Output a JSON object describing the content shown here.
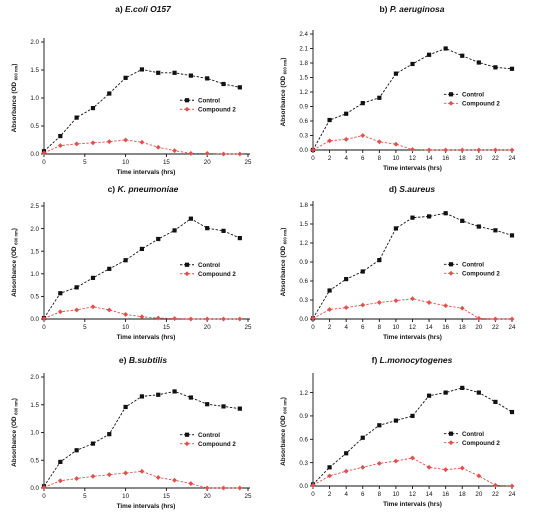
{
  "chart_data": [
    {
      "type": "line",
      "title_prefix": "a)",
      "title_name": "E.coli O157",
      "xlabel": "Time intervals (hrs)",
      "ylabel_main": "Absorbance  (OD",
      "ylabel_sub": "600 nm",
      "ylabel_end": ")",
      "xlim": [
        0,
        25
      ],
      "ylim": [
        0,
        2.0
      ],
      "xticks": [
        0,
        5,
        10,
        15,
        20,
        25
      ],
      "xtick_labels": [
        "0",
        "5",
        "10",
        "15",
        "20",
        "25"
      ],
      "yticks": [
        0,
        0.5,
        1.0,
        1.5,
        2.0
      ],
      "ytick_labels": [
        "0.0",
        "0.5",
        "1.0",
        "1.5",
        "2.0"
      ],
      "legend_position": "right",
      "series": [
        {
          "name": "Control",
          "color": "#111111",
          "marker": "square",
          "x": [
            0,
            2,
            4,
            6,
            8,
            10,
            12,
            14,
            16,
            18,
            20,
            22,
            24
          ],
          "y": [
            0.05,
            0.32,
            0.65,
            0.82,
            1.08,
            1.36,
            1.51,
            1.45,
            1.45,
            1.4,
            1.35,
            1.25,
            1.19
          ]
        },
        {
          "name": "Compound 2",
          "color": "#e0504c",
          "marker": "diamond",
          "x": [
            0,
            2,
            4,
            6,
            8,
            10,
            12,
            14,
            16,
            18,
            20,
            22,
            24
          ],
          "y": [
            0.02,
            0.15,
            0.18,
            0.2,
            0.22,
            0.25,
            0.21,
            0.12,
            0.06,
            0.01,
            0.01,
            0.0,
            0.0
          ]
        }
      ]
    },
    {
      "type": "line",
      "title_prefix": "b)",
      "title_name": "P. aeruginosa",
      "xlabel": "Time intervals (hrs)",
      "ylabel_main": "Absorbance  (OD",
      "ylabel_sub": "600 nm",
      "ylabel_end": ")",
      "xlim": [
        0,
        24
      ],
      "ylim": [
        0,
        2.4
      ],
      "xticks": [
        0,
        2,
        4,
        6,
        8,
        10,
        12,
        14,
        16,
        18,
        20,
        22,
        24
      ],
      "xtick_labels": [
        "0",
        "2",
        "4",
        "6",
        "8",
        "10",
        "12",
        "14",
        "16",
        "18",
        "20",
        "22",
        "24"
      ],
      "yticks": [
        0,
        0.3,
        0.6,
        0.9,
        1.2,
        1.5,
        1.8,
        2.1,
        2.4
      ],
      "ytick_labels": [
        "0.0",
        "0.3",
        "0.6",
        "0.9",
        "1.2",
        "1.5",
        "1.8",
        "2.1",
        "2.4"
      ],
      "legend_position": "right",
      "series": [
        {
          "name": "Control",
          "color": "#111111",
          "marker": "square",
          "x": [
            0,
            2,
            4,
            6,
            8,
            10,
            12,
            14,
            16,
            18,
            20,
            22,
            24
          ],
          "y": [
            0.0,
            0.62,
            0.75,
            0.97,
            1.08,
            1.58,
            1.78,
            1.97,
            2.1,
            1.95,
            1.81,
            1.71,
            1.68
          ]
        },
        {
          "name": "Compound 2",
          "color": "#e0504c",
          "marker": "diamond",
          "x": [
            0,
            2,
            4,
            6,
            8,
            10,
            12,
            14,
            16,
            18,
            20,
            22,
            24
          ],
          "y": [
            0.0,
            0.19,
            0.22,
            0.3,
            0.17,
            0.12,
            0.01,
            0.0,
            0.0,
            0.0,
            0.0,
            0.0,
            0.0
          ]
        }
      ]
    },
    {
      "type": "line",
      "title_prefix": "c)",
      "title_name": "K. pneumoniae",
      "xlabel": "Time intervals (hrs)",
      "ylabel_main": "Absorbance  (OD",
      "ylabel_sub": "600 nm",
      "ylabel_end": ")",
      "xlim": [
        0,
        25
      ],
      "ylim": [
        0,
        2.5
      ],
      "xticks": [
        0,
        5,
        10,
        15,
        20,
        25
      ],
      "xtick_labels": [
        "0",
        "5",
        "10",
        "15",
        "20",
        "25"
      ],
      "yticks": [
        0,
        0.5,
        1.0,
        1.5,
        2.0,
        2.5
      ],
      "ytick_labels": [
        "0.0",
        "0.5",
        "1.0",
        "1.5",
        "2.0",
        "2.5"
      ],
      "legend_position": "right",
      "series": [
        {
          "name": "Control",
          "color": "#111111",
          "marker": "square",
          "x": [
            0,
            2,
            4,
            6,
            8,
            10,
            12,
            14,
            16,
            18,
            20,
            22,
            24
          ],
          "y": [
            0.02,
            0.57,
            0.7,
            0.91,
            1.11,
            1.3,
            1.55,
            1.77,
            1.96,
            2.22,
            2.01,
            1.95,
            1.79
          ]
        },
        {
          "name": "Compound 2",
          "color": "#e0504c",
          "marker": "diamond",
          "x": [
            0,
            2,
            4,
            6,
            8,
            10,
            12,
            14,
            16,
            18,
            20,
            22,
            24
          ],
          "y": [
            0.01,
            0.16,
            0.2,
            0.27,
            0.2,
            0.1,
            0.05,
            0.02,
            0.01,
            0.0,
            0.0,
            0.0,
            0.0
          ]
        }
      ]
    },
    {
      "type": "line",
      "title_prefix": "d)",
      "title_name": "S.aureus",
      "xlabel": "Time intervals (hrs)",
      "ylabel_main": "Absorbance  (OD",
      "ylabel_sub": "600 nm",
      "ylabel_end": ")",
      "xlim": [
        0,
        24
      ],
      "ylim": [
        0,
        1.8
      ],
      "xticks": [
        0,
        2,
        4,
        6,
        8,
        10,
        12,
        14,
        16,
        18,
        20,
        22,
        24
      ],
      "xtick_labels": [
        "0",
        "2",
        "4",
        "6",
        "8",
        "10",
        "12",
        "14",
        "16",
        "18",
        "20",
        "22",
        "24"
      ],
      "yticks": [
        0,
        0.3,
        0.6,
        0.9,
        1.2,
        1.5,
        1.8
      ],
      "ytick_labels": [
        "0.0",
        "0.3",
        "0.6",
        "0.9",
        "1.2",
        "1.5",
        "1.8"
      ],
      "legend_position": "right",
      "series": [
        {
          "name": "Control",
          "color": "#111111",
          "marker": "square",
          "x": [
            0,
            2,
            4,
            6,
            8,
            10,
            12,
            14,
            16,
            18,
            20,
            22,
            24
          ],
          "y": [
            0.01,
            0.45,
            0.63,
            0.75,
            0.93,
            1.43,
            1.6,
            1.62,
            1.67,
            1.55,
            1.46,
            1.4,
            1.32
          ]
        },
        {
          "name": "Compound 2",
          "color": "#e0504c",
          "marker": "diamond",
          "x": [
            0,
            2,
            4,
            6,
            8,
            10,
            12,
            14,
            16,
            18,
            20,
            22,
            24
          ],
          "y": [
            0.01,
            0.15,
            0.18,
            0.22,
            0.26,
            0.29,
            0.32,
            0.26,
            0.21,
            0.17,
            0.01,
            0.0,
            0.0
          ]
        }
      ]
    },
    {
      "type": "line",
      "title_prefix": "e)",
      "title_name": "B.subtilis",
      "xlabel": "Time intervals (hrs)",
      "ylabel_main": "Absorbance  (OD",
      "ylabel_sub": "600 nm",
      "ylabel_end": ")",
      "xlim": [
        0,
        25
      ],
      "ylim": [
        0,
        2.0
      ],
      "xticks": [
        0,
        5,
        10,
        15,
        20,
        25
      ],
      "xtick_labels": [
        "0",
        "5",
        "10",
        "15",
        "20",
        "25"
      ],
      "yticks": [
        0,
        0.5,
        1.0,
        1.5,
        2.0
      ],
      "ytick_labels": [
        "0.0",
        "0.5",
        "1.0",
        "1.5",
        "2.0"
      ],
      "legend_position": "right",
      "series": [
        {
          "name": "Control",
          "color": "#111111",
          "marker": "square",
          "x": [
            0,
            2,
            4,
            6,
            8,
            10,
            12,
            14,
            16,
            18,
            20,
            22,
            24
          ],
          "y": [
            0.03,
            0.47,
            0.68,
            0.8,
            0.97,
            1.46,
            1.65,
            1.68,
            1.74,
            1.63,
            1.51,
            1.47,
            1.43
          ]
        },
        {
          "name": "Compound 2",
          "color": "#e0504c",
          "marker": "diamond",
          "x": [
            0,
            2,
            4,
            6,
            8,
            10,
            12,
            14,
            16,
            18,
            20,
            22,
            24
          ],
          "y": [
            0.01,
            0.13,
            0.17,
            0.21,
            0.24,
            0.27,
            0.3,
            0.19,
            0.14,
            0.08,
            0.0,
            0.0,
            0.0
          ]
        }
      ]
    },
    {
      "type": "line",
      "title_prefix": "f)",
      "title_name": "L.monocytogenes",
      "xlabel": "Time intervals (hrs)",
      "ylabel_main": "Absorbance  (OD",
      "ylabel_sub": "600 nm",
      "ylabel_end": ")",
      "xlim": [
        0,
        24
      ],
      "ylim": [
        0,
        1.4
      ],
      "xticks": [
        0,
        2,
        4,
        6,
        8,
        10,
        12,
        14,
        16,
        18,
        20,
        22,
        24
      ],
      "xtick_labels": [
        "0",
        "2",
        "4",
        "6",
        "8",
        "10",
        "12",
        "14",
        "16",
        "18",
        "20",
        "22",
        "24"
      ],
      "yticks": [
        0,
        0.3,
        0.6,
        0.9,
        1.2
      ],
      "ytick_labels": [
        "0.0",
        "0.3",
        "0.6",
        "0.9",
        "1.2"
      ],
      "legend_position": "right",
      "series": [
        {
          "name": "Control",
          "color": "#111111",
          "marker": "square",
          "x": [
            0,
            2,
            4,
            6,
            8,
            10,
            12,
            14,
            16,
            18,
            20,
            22,
            24
          ],
          "y": [
            0.02,
            0.24,
            0.42,
            0.62,
            0.78,
            0.84,
            0.9,
            1.16,
            1.2,
            1.26,
            1.2,
            1.08,
            0.95
          ]
        },
        {
          "name": "Compound 2",
          "color": "#e0504c",
          "marker": "diamond",
          "x": [
            0,
            2,
            4,
            6,
            8,
            10,
            12,
            14,
            16,
            18,
            20,
            22,
            24
          ],
          "y": [
            0.01,
            0.13,
            0.19,
            0.24,
            0.29,
            0.32,
            0.36,
            0.24,
            0.21,
            0.23,
            0.13,
            0.01,
            0.0
          ]
        }
      ]
    }
  ]
}
